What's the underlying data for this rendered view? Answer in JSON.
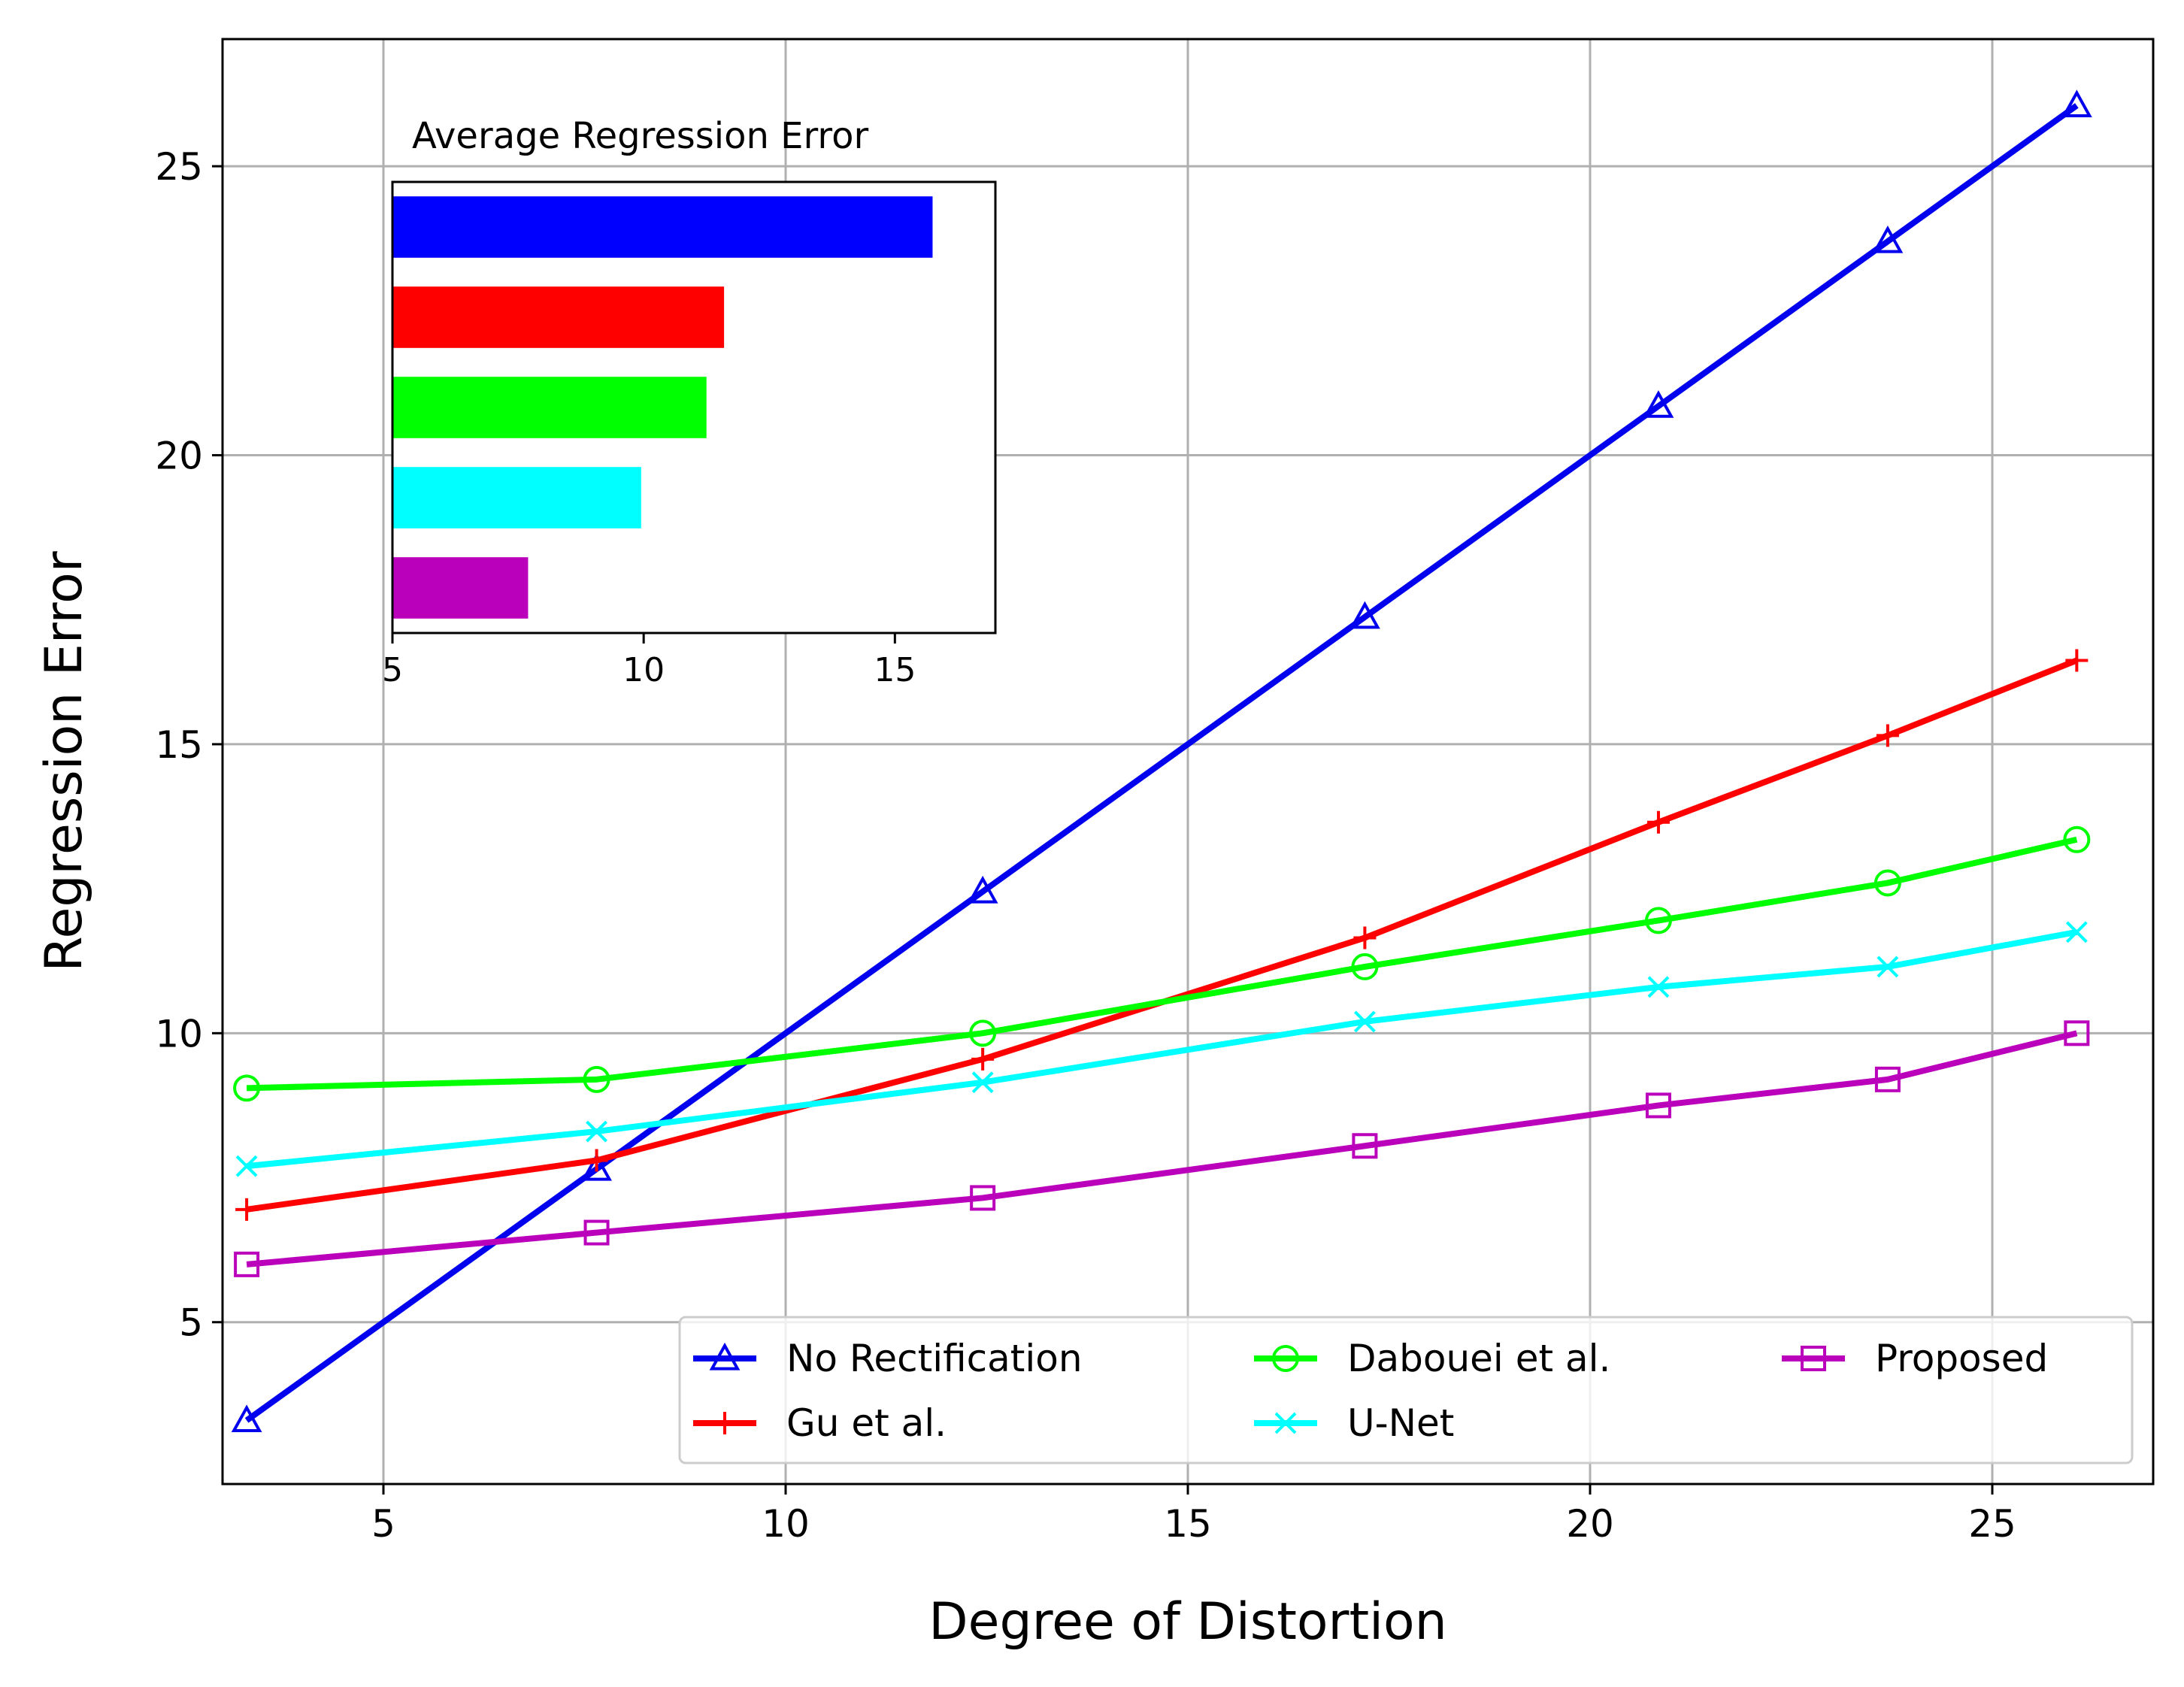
{
  "chart_data": [
    {
      "type": "line",
      "xlabel": "Degree of Distortion",
      "ylabel": "Regression Error",
      "xlim": [
        3,
        27
      ],
      "ylim": [
        2.2,
        27.2
      ],
      "xticks": [
        5,
        10,
        15,
        20,
        25
      ],
      "yticks": [
        5,
        10,
        15,
        20,
        25
      ],
      "grid": true,
      "legend": {
        "placement": "lower-right",
        "columns": 3
      },
      "x": [
        3.3,
        7.65,
        12.45,
        17.2,
        20.85,
        23.7,
        26.05
      ],
      "series": [
        {
          "name": "No Rectification",
          "color": "#0000ee",
          "marker": "triangle",
          "values": [
            3.3,
            7.65,
            12.45,
            17.2,
            20.85,
            23.7,
            26.05
          ]
        },
        {
          "name": "Gu et al.",
          "color": "#ff0000",
          "marker": "plus",
          "values": [
            6.95,
            7.8,
            9.55,
            11.65,
            13.65,
            15.15,
            16.45
          ]
        },
        {
          "name": "Dabouei et al.",
          "color": "#00ff00",
          "marker": "circle",
          "values": [
            9.05,
            9.2,
            10.0,
            11.15,
            11.95,
            12.6,
            13.35
          ]
        },
        {
          "name": "U-Net",
          "color": "#00ffff",
          "marker": "x",
          "values": [
            7.7,
            8.3,
            9.15,
            10.2,
            10.8,
            11.15,
            11.75
          ]
        },
        {
          "name": "Proposed",
          "color": "#bb00bb",
          "marker": "square",
          "values": [
            6.0,
            6.55,
            7.15,
            8.05,
            8.75,
            9.2,
            10.0
          ]
        }
      ]
    },
    {
      "type": "bar",
      "orientation": "horizontal",
      "title": "Average Regression Error",
      "xlim": [
        5,
        17
      ],
      "xticks": [
        5,
        10,
        15
      ],
      "categories": [
        "No Rectification",
        "Gu et al.",
        "Dabouei et al.",
        "U-Net",
        "Proposed"
      ],
      "colors": [
        "#0000ff",
        "#ff0000",
        "#00ff00",
        "#00ffff",
        "#bb00bb"
      ],
      "values": [
        15.75,
        11.6,
        11.25,
        9.95,
        7.7
      ]
    }
  ]
}
